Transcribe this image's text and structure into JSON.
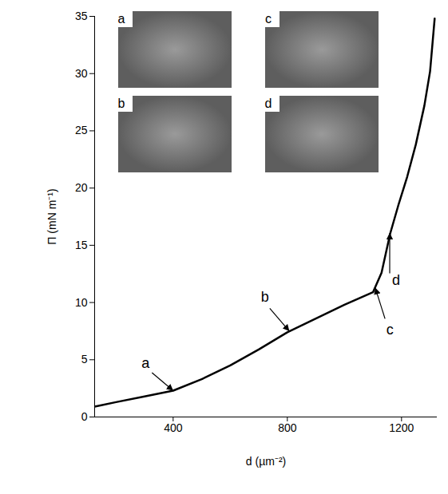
{
  "chart_data": {
    "type": "line",
    "x_label": "d (µm⁻²)",
    "y_label": "Π (mN m⁻¹)",
    "x": [
      125,
      200,
      300,
      400,
      500,
      600,
      700,
      800,
      900,
      1000,
      1100,
      1130,
      1160,
      1190,
      1220,
      1250,
      1280,
      1300,
      1316
    ],
    "values": [
      0.9,
      1.3,
      1.8,
      2.3,
      3.3,
      4.5,
      5.9,
      7.4,
      8.6,
      9.8,
      10.9,
      12.6,
      16.0,
      18.6,
      21.0,
      23.8,
      27.2,
      30.2,
      34.8
    ],
    "color": "#000000",
    "xlim": [
      125,
      1325
    ],
    "ylim": [
      0,
      35
    ],
    "xticks": [
      400,
      800,
      1200
    ],
    "yticks": [
      0,
      5,
      10,
      15,
      20,
      25,
      30,
      35
    ],
    "annotations": [
      {
        "text": "a",
        "x": 400,
        "y": 2.3
      },
      {
        "text": "b",
        "x": 807,
        "y": 7.5
      },
      {
        "text": "c",
        "x": 1110,
        "y": 11.2
      },
      {
        "text": "d",
        "x": 1160,
        "y": 16.0
      }
    ],
    "inset_labels": [
      "a",
      "b",
      "c",
      "d"
    ]
  }
}
